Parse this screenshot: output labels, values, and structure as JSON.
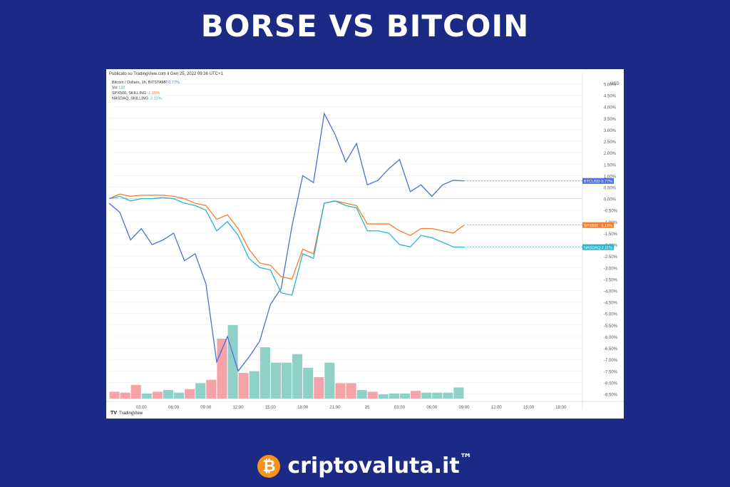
{
  "headline": "BORSE VS BITCOIN",
  "brand": {
    "text": "criptovaluta.it",
    "tm": "™",
    "logo_glyph": "₿",
    "logo_color": "#f7931a"
  },
  "chart_data": {
    "type": "line",
    "published": "Publicato su TradingView.com il Gen 25, 2022 09:36 UTC+1",
    "legend": [
      {
        "label": "Bitcoin / Dollaro, 1h, BITSTAMP",
        "value": "0.77%",
        "color": "#4a6fd8"
      },
      {
        "label": "Vol",
        "value": "132",
        "color": "#26a69a"
      },
      {
        "label": "SPX500, SKILLING",
        "value": "-1.15%",
        "color": "#f57c2a"
      },
      {
        "label": "NASDAQ, SKILLING",
        "value": "-2.11%",
        "color": "#2ab4c8"
      }
    ],
    "currency": "USD",
    "y_ticks": [
      "5.00%",
      "4.50%",
      "4.00%",
      "3.50%",
      "3.00%",
      "2.50%",
      "2.00%",
      "1.50%",
      "1.00%",
      "0.50%",
      "0.00%",
      "-0.50%",
      "-1.00%",
      "-1.50%",
      "-2.00%",
      "-2.50%",
      "-3.00%",
      "-3.50%",
      "-4.00%",
      "-4.50%",
      "-5.00%",
      "-5.50%",
      "-6.00%",
      "-6.50%",
      "-7.00%",
      "-7.50%",
      "-8.00%",
      "-8.50%"
    ],
    "ylim": [
      -8.7,
      5.2
    ],
    "x_ticks": [
      "03:00",
      "06:00",
      "09:00",
      "12:00",
      "15:00",
      "18:00",
      "21:00",
      "25",
      "03:00",
      "06:00",
      "09:00",
      "12:00",
      "15:00",
      "18:00"
    ],
    "x_tick_hours": [
      3,
      6,
      9,
      12,
      15,
      18,
      21,
      24,
      27,
      30,
      33,
      36,
      39,
      42
    ],
    "x_range_hours": [
      0,
      44
    ],
    "series": [
      {
        "name": "BTCUSD",
        "tag": "0.77%",
        "color": "#4a6fd8",
        "hours": [
          0,
          1,
          2,
          3,
          4,
          5,
          6,
          7,
          8,
          9,
          10,
          11,
          12,
          13,
          14,
          15,
          16,
          17,
          18,
          19,
          20,
          21,
          22,
          23,
          24,
          25,
          26,
          27,
          28,
          29,
          30,
          31,
          32,
          33
        ],
        "values": [
          -0.2,
          -0.6,
          -1.8,
          -1.3,
          -2.0,
          -1.8,
          -1.5,
          -2.7,
          -2.4,
          -3.7,
          -7.1,
          -6.0,
          -7.5,
          -6.9,
          -6.2,
          -4.6,
          -3.9,
          -1.2,
          1.0,
          0.7,
          3.7,
          2.8,
          1.6,
          2.4,
          0.6,
          0.8,
          1.3,
          1.7,
          0.3,
          0.6,
          0.1,
          0.6,
          0.8,
          0.77
        ]
      },
      {
        "name": "SPX500",
        "tag": "-1.15%",
        "color": "#f57c2a",
        "hours": [
          0,
          1,
          2,
          3,
          4,
          5,
          6,
          7,
          8,
          9,
          10,
          11,
          12,
          13,
          14,
          15,
          16,
          17,
          18,
          19,
          20,
          21,
          22,
          23,
          24,
          25,
          26,
          27,
          28,
          29,
          30,
          31,
          32,
          33
        ],
        "values": [
          0.0,
          0.2,
          0.1,
          0.15,
          0.15,
          0.15,
          0.1,
          0.0,
          -0.2,
          -0.3,
          -0.9,
          -0.7,
          -1.3,
          -2.2,
          -2.8,
          -2.9,
          -3.4,
          -3.5,
          -2.2,
          -2.4,
          -0.2,
          -0.1,
          -0.2,
          -0.3,
          -1.1,
          -1.1,
          -1.1,
          -1.4,
          -1.6,
          -1.3,
          -1.3,
          -1.4,
          -1.5,
          -1.15
        ]
      },
      {
        "name": "NASDAQ",
        "tag": "-2.11%",
        "color": "#2ab4c8",
        "hours": [
          0,
          1,
          2,
          3,
          4,
          5,
          6,
          7,
          8,
          9,
          10,
          11,
          12,
          13,
          14,
          15,
          16,
          17,
          18,
          19,
          20,
          21,
          22,
          23,
          24,
          25,
          26,
          27,
          28,
          29,
          30,
          31,
          32,
          33
        ],
        "values": [
          0.0,
          0.1,
          -0.1,
          0.0,
          0.0,
          0.05,
          0.0,
          -0.2,
          -0.3,
          -0.5,
          -1.4,
          -1.0,
          -1.6,
          -2.6,
          -3.0,
          -3.1,
          -4.1,
          -4.2,
          -2.4,
          -2.6,
          -0.2,
          -0.1,
          -0.3,
          -0.4,
          -1.4,
          -1.4,
          -1.5,
          -2.0,
          -2.1,
          -1.6,
          -1.7,
          -1.9,
          -2.1,
          -2.11
        ]
      }
    ],
    "volume": {
      "up_color": "#8fd1c7",
      "down_color": "#f5a3a8",
      "bars": [
        {
          "h": 0,
          "v": 8,
          "dir": "down"
        },
        {
          "h": 1,
          "v": 7,
          "dir": "down"
        },
        {
          "h": 2,
          "v": 16,
          "dir": "down"
        },
        {
          "h": 3,
          "v": 6,
          "dir": "up"
        },
        {
          "h": 4,
          "v": 8,
          "dir": "down"
        },
        {
          "h": 5,
          "v": 10,
          "dir": "up"
        },
        {
          "h": 6,
          "v": 7,
          "dir": "up"
        },
        {
          "h": 7,
          "v": 11,
          "dir": "down"
        },
        {
          "h": 8,
          "v": 18,
          "dir": "up"
        },
        {
          "h": 9,
          "v": 22,
          "dir": "down"
        },
        {
          "h": 10,
          "v": 70,
          "dir": "down"
        },
        {
          "h": 11,
          "v": 86,
          "dir": "up"
        },
        {
          "h": 12,
          "v": 30,
          "dir": "down"
        },
        {
          "h": 13,
          "v": 32,
          "dir": "up"
        },
        {
          "h": 14,
          "v": 60,
          "dir": "up"
        },
        {
          "h": 15,
          "v": 42,
          "dir": "up"
        },
        {
          "h": 16,
          "v": 42,
          "dir": "up"
        },
        {
          "h": 17,
          "v": 52,
          "dir": "up"
        },
        {
          "h": 18,
          "v": 36,
          "dir": "up"
        },
        {
          "h": 19,
          "v": 25,
          "dir": "down"
        },
        {
          "h": 20,
          "v": 42,
          "dir": "up"
        },
        {
          "h": 21,
          "v": 18,
          "dir": "down"
        },
        {
          "h": 22,
          "v": 18,
          "dir": "down"
        },
        {
          "h": 23,
          "v": 10,
          "dir": "up"
        },
        {
          "h": 24,
          "v": 8,
          "dir": "down"
        },
        {
          "h": 25,
          "v": 5,
          "dir": "up"
        },
        {
          "h": 26,
          "v": 6,
          "dir": "up"
        },
        {
          "h": 27,
          "v": 6,
          "dir": "up"
        },
        {
          "h": 28,
          "v": 9,
          "dir": "down"
        },
        {
          "h": 29,
          "v": 7,
          "dir": "up"
        },
        {
          "h": 30,
          "v": 7,
          "dir": "up"
        },
        {
          "h": 31,
          "v": 7,
          "dir": "up"
        },
        {
          "h": 32,
          "v": 13,
          "dir": "up"
        }
      ],
      "max": 100
    },
    "footer": "TradingView",
    "grid": true
  }
}
